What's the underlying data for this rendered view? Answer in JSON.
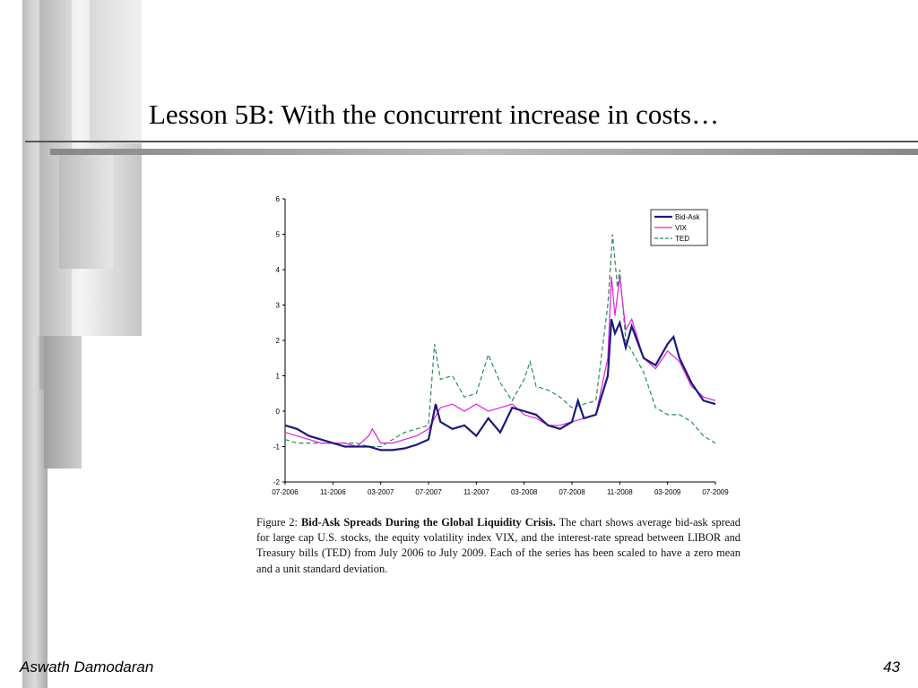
{
  "slide": {
    "title": "Lesson 5B: With the concurrent increase in costs…",
    "footer_left": "Aswath Damodaran",
    "page_number": "43"
  },
  "caption": {
    "figure_label": "Figure 2:",
    "figure_title": "Bid-Ask Spreads During the Global Liquidity Crisis.",
    "text": " The chart shows average bid-ask spread for large cap U.S. stocks, the equity volatility index VIX, and the interest-rate spread between LIBOR and Treasury bills (TED) from July 2006 to July 2009. Each of the series has been scaled to have a zero mean and a unit standard deviation."
  },
  "chart_data": {
    "type": "line",
    "title": "",
    "xlabel": "",
    "ylabel": "",
    "ylim": [
      -2,
      6
    ],
    "yticks": [
      "-2",
      "-1",
      "0",
      "1",
      "2",
      "3",
      "4",
      "5",
      "6"
    ],
    "xlim": [
      0,
      36
    ],
    "xticks": [
      {
        "x": 0,
        "label": "07-2006"
      },
      {
        "x": 4,
        "label": "11-2006"
      },
      {
        "x": 8,
        "label": "03-2007"
      },
      {
        "x": 12,
        "label": "07-2007"
      },
      {
        "x": 16,
        "label": "11-2007"
      },
      {
        "x": 20,
        "label": "03-2008"
      },
      {
        "x": 24,
        "label": "07-2008"
      },
      {
        "x": 28,
        "label": "11-2008"
      },
      {
        "x": 32,
        "label": "03-2009"
      },
      {
        "x": 36,
        "label": "07-2009"
      }
    ],
    "legend_position": "top-right",
    "grid": false,
    "series": [
      {
        "name": "Bid-Ask",
        "color": "#1a1a7a",
        "style": "solid-marker",
        "points": [
          [
            0,
            -0.4
          ],
          [
            1,
            -0.5
          ],
          [
            2,
            -0.7
          ],
          [
            3,
            -0.8
          ],
          [
            4,
            -0.9
          ],
          [
            5,
            -1.0
          ],
          [
            6,
            -1.0
          ],
          [
            7,
            -1.0
          ],
          [
            8,
            -1.1
          ],
          [
            9,
            -1.1
          ],
          [
            10,
            -1.05
          ],
          [
            11,
            -0.95
          ],
          [
            12,
            -0.8
          ],
          [
            12.6,
            0.2
          ],
          [
            13,
            -0.3
          ],
          [
            14,
            -0.5
          ],
          [
            15,
            -0.4
          ],
          [
            16,
            -0.7
          ],
          [
            17,
            -0.2
          ],
          [
            18,
            -0.6
          ],
          [
            19,
            0.1
          ],
          [
            20,
            0.0
          ],
          [
            21,
            -0.1
          ],
          [
            22,
            -0.4
          ],
          [
            23,
            -0.5
          ],
          [
            24,
            -0.3
          ],
          [
            24.5,
            0.3
          ],
          [
            25,
            -0.2
          ],
          [
            26,
            -0.1
          ],
          [
            27,
            1.0
          ],
          [
            27.3,
            2.6
          ],
          [
            27.6,
            2.2
          ],
          [
            28,
            2.5
          ],
          [
            28.5,
            1.8
          ],
          [
            29,
            2.4
          ],
          [
            30,
            1.5
          ],
          [
            31,
            1.3
          ],
          [
            32,
            1.9
          ],
          [
            32.5,
            2.1
          ],
          [
            33,
            1.5
          ],
          [
            34,
            0.8
          ],
          [
            35,
            0.3
          ],
          [
            36,
            0.2
          ]
        ]
      },
      {
        "name": "VIX",
        "color": "#e020e0",
        "style": "solid",
        "points": [
          [
            0,
            -0.6
          ],
          [
            1,
            -0.7
          ],
          [
            2,
            -0.8
          ],
          [
            3,
            -0.9
          ],
          [
            4,
            -0.9
          ],
          [
            5,
            -0.9
          ],
          [
            6,
            -1.0
          ],
          [
            7,
            -0.7
          ],
          [
            7.3,
            -0.5
          ],
          [
            8,
            -0.9
          ],
          [
            9,
            -0.9
          ],
          [
            10,
            -0.8
          ],
          [
            11,
            -0.7
          ],
          [
            12,
            -0.5
          ],
          [
            13,
            0.1
          ],
          [
            14,
            0.2
          ],
          [
            15,
            0.0
          ],
          [
            16,
            0.2
          ],
          [
            17,
            0.0
          ],
          [
            18,
            0.1
          ],
          [
            19,
            0.2
          ],
          [
            20,
            -0.1
          ],
          [
            21,
            -0.2
          ],
          [
            22,
            -0.4
          ],
          [
            23,
            -0.4
          ],
          [
            24,
            -0.3
          ],
          [
            25,
            -0.2
          ],
          [
            26,
            -0.1
          ],
          [
            27,
            1.5
          ],
          [
            27.3,
            3.8
          ],
          [
            27.6,
            2.7
          ],
          [
            28,
            3.8
          ],
          [
            28.5,
            2.3
          ],
          [
            29,
            2.6
          ],
          [
            30,
            1.5
          ],
          [
            31,
            1.2
          ],
          [
            32,
            1.7
          ],
          [
            33,
            1.4
          ],
          [
            34,
            0.7
          ],
          [
            35,
            0.4
          ],
          [
            36,
            0.3
          ]
        ]
      },
      {
        "name": "TED",
        "color": "#2e8b57",
        "style": "dashed",
        "points": [
          [
            0,
            -0.8
          ],
          [
            1,
            -0.9
          ],
          [
            2,
            -0.9
          ],
          [
            3,
            -0.9
          ],
          [
            4,
            -0.9
          ],
          [
            5,
            -0.9
          ],
          [
            6,
            -0.9
          ],
          [
            7,
            -1.0
          ],
          [
            8,
            -1.0
          ],
          [
            9,
            -0.8
          ],
          [
            10,
            -0.6
          ],
          [
            11,
            -0.5
          ],
          [
            12,
            -0.4
          ],
          [
            12.5,
            1.9
          ],
          [
            13,
            0.9
          ],
          [
            14,
            1.0
          ],
          [
            15,
            0.4
          ],
          [
            16,
            0.5
          ],
          [
            17,
            1.6
          ],
          [
            18,
            0.8
          ],
          [
            19,
            0.3
          ],
          [
            20,
            0.9
          ],
          [
            20.5,
            1.4
          ],
          [
            21,
            0.7
          ],
          [
            22,
            0.6
          ],
          [
            23,
            0.4
          ],
          [
            24,
            0.1
          ],
          [
            25,
            0.2
          ],
          [
            26,
            0.3
          ],
          [
            27,
            3.0
          ],
          [
            27.4,
            5.0
          ],
          [
            27.8,
            3.5
          ],
          [
            28,
            4.0
          ],
          [
            28.5,
            2.0
          ],
          [
            29,
            1.7
          ],
          [
            30,
            1.1
          ],
          [
            31,
            0.1
          ],
          [
            32,
            -0.1
          ],
          [
            33,
            -0.1
          ],
          [
            34,
            -0.3
          ],
          [
            35,
            -0.7
          ],
          [
            36,
            -0.9
          ]
        ]
      }
    ]
  }
}
